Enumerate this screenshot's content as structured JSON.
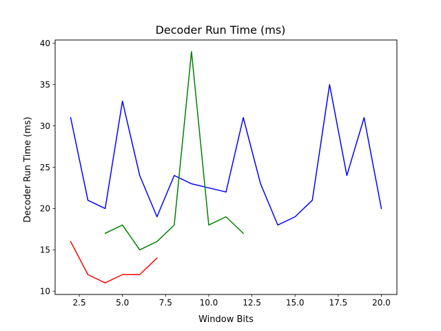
{
  "chart_data": {
    "type": "line",
    "title": "Decoder Run Time (ms)",
    "xlabel": "Window Bits",
    "ylabel": "Decoder Run Time (ms)",
    "xlim": [
      1.1,
      20.9
    ],
    "ylim": [
      9.6,
      40.4
    ],
    "xticks": [
      2.5,
      5.0,
      7.5,
      10.0,
      12.5,
      15.0,
      17.5,
      20.0
    ],
    "xtick_labels": [
      "2.5",
      "5.0",
      "7.5",
      "10.0",
      "12.5",
      "15.0",
      "17.5",
      "20.0"
    ],
    "yticks": [
      10,
      15,
      20,
      25,
      30,
      35,
      40
    ],
    "ytick_labels": [
      "10",
      "15",
      "20",
      "25",
      "30",
      "35",
      "40"
    ],
    "grid": false,
    "legend": false,
    "series": [
      {
        "color": "#0000ff",
        "x": [
          2,
          3,
          4,
          5,
          6,
          7,
          8,
          9,
          10,
          11,
          12,
          13,
          14,
          15,
          16,
          17,
          18,
          19,
          20
        ],
        "y": [
          31,
          21,
          20,
          33,
          24,
          19,
          24,
          23,
          22.5,
          22,
          31,
          23,
          18,
          19,
          21,
          35,
          24,
          31,
          20
        ]
      },
      {
        "color": "#008000",
        "x": [
          4,
          5,
          6,
          7,
          8,
          9,
          10,
          11,
          12
        ],
        "y": [
          17,
          18,
          15,
          16,
          18,
          39,
          18,
          19,
          17
        ]
      },
      {
        "color": "#ff0000",
        "x": [
          2,
          3,
          4,
          5,
          6,
          7
        ],
        "y": [
          16,
          12,
          11,
          12,
          12,
          14
        ]
      }
    ]
  }
}
